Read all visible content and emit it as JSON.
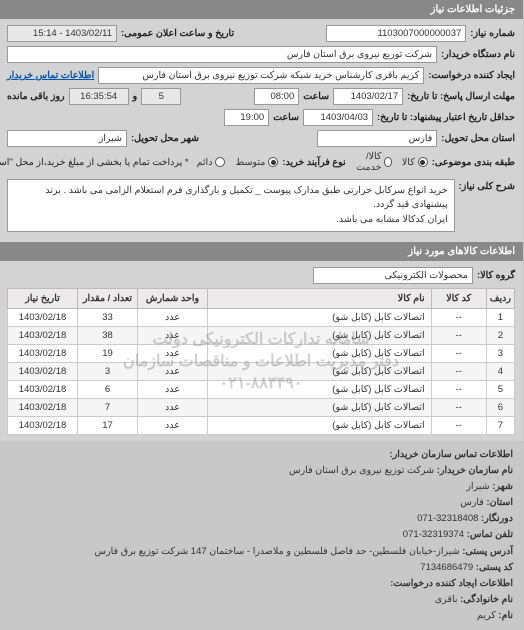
{
  "sections": {
    "details": "جزئیات اطلاعات نیاز",
    "goods": "اطلاعات کالاهای مورد نیاز",
    "buyer_contact": "اطلاعات تماس سازمان خریدار:",
    "requester_contact": "اطلاعات ایجاد کننده درخواست:"
  },
  "labels": {
    "need_no": "شماره نیاز:",
    "public_date": "تاریخ و ساعت اعلان عمومی:",
    "buyer_org": "نام دستگاه خریدار:",
    "requester": "ایجاد کننده درخواست:",
    "buyer_contact_link": "اطلاعات تماس خریدار",
    "send_until_date": "مهلت ارسال پاسخ: تا تاریخ:",
    "time": "ساعت",
    "and": "و",
    "remaining": "روز باقی مانده",
    "valid_until_date": "حداقل تاریخ اعتبار پیشنهاد: تا تاریخ:",
    "location_province": "استان محل تحویل:",
    "location_city": "شهر محل تحویل:",
    "process_type": "نوع فرآیند خرید:",
    "goods_group": "طبقه بندی موضوعی:",
    "payment_note": "* پرداخت تمام یا بخشی از مبلغ خرید،از محل \"اسناد خزانه اسلامی\" خواهد بود.",
    "general_desc": "شرح کلی نیاز:",
    "goods_group_label": "گروه کالا:"
  },
  "values": {
    "need_no": "1103007000000037",
    "public_date": "1403/02/11 - 15:14",
    "buyer_org": "شرکت توزیع نیروی برق استان فارس",
    "requester": "کریم باقری کارشناس خرید شبکه شرکت توزیع نیروی برق استان فارس",
    "send_until_date": "1403/02/17",
    "send_until_time": "08:00",
    "remaining_days": "5",
    "remaining_time": "16:35:54",
    "valid_until_date": "1403/04/03",
    "valid_until_time": "19:00",
    "province": "فارس",
    "city": "شیراز",
    "goods_group": "محصولات الکترونیکی"
  },
  "process_options": {
    "medium": "متوسط",
    "goods2": "کالا",
    "direct": "خرید مستقیم"
  },
  "radio2": {
    "opt1": "دائم",
    "opt2": "کالا/خدمت"
  },
  "desc": {
    "line1": "خرید انواع سرکابل حرارتی طبق مدارک پیوست _ تکمیل و بارگذاری فرم استعلام الزامی می باشد . برند پیشنهادی قید گردد.",
    "line2": "ایران کدکالا مشابه می باشد."
  },
  "watermark": {
    "l1": "سامانه تدارکات الکترونیکی دولت",
    "l2": "دفتر مدیریت اطلاعات و مناقصات سازمان",
    "l3": "۰۲۱-۸۸۳۴۹۰"
  },
  "table": {
    "headers": {
      "idx": "ردیف",
      "code": "کد کالا",
      "name": "نام کالا",
      "unit": "واحد شمارش",
      "qty": "تعداد / مقدار",
      "date": "تاریخ نیاز"
    },
    "rows": [
      {
        "idx": "1",
        "code": "--",
        "name": "اتصالات کابل (کابل شو)",
        "unit": "عدد",
        "qty": "33",
        "date": "1403/02/18"
      },
      {
        "idx": "2",
        "code": "--",
        "name": "اتصالات کابل (کابل شو)",
        "unit": "عدد",
        "qty": "38",
        "date": "1403/02/18"
      },
      {
        "idx": "3",
        "code": "--",
        "name": "اتصالات کابل (کابل شو)",
        "unit": "عدد",
        "qty": "19",
        "date": "1403/02/18"
      },
      {
        "idx": "4",
        "code": "--",
        "name": "اتصالات کابل (کابل شو)",
        "unit": "عدد",
        "qty": "3",
        "date": "1403/02/18"
      },
      {
        "idx": "5",
        "code": "--",
        "name": "اتصالات کابل (کابل شو)",
        "unit": "عدد",
        "qty": "6",
        "date": "1403/02/18"
      },
      {
        "idx": "6",
        "code": "--",
        "name": "اتصالات کابل (کابل شو)",
        "unit": "عدد",
        "qty": "7",
        "date": "1403/02/18"
      },
      {
        "idx": "7",
        "code": "--",
        "name": "اتصالات کابل (کابل شو)",
        "unit": "عدد",
        "qty": "17",
        "date": "1403/02/18"
      }
    ]
  },
  "contact": {
    "org_label": "نام سازمان خریدار:",
    "org": "شرکت توزیع نیروی برق استان فارس",
    "city_label": "شهر:",
    "city": "شیراز",
    "province_label": "استان:",
    "province": "فارس",
    "phone_label": "دورنگار:",
    "phone": "32318408-071",
    "tel_label": "تلفن تماس:",
    "tel": "32319374-071",
    "addr_label": "آدرس پستی:",
    "addr": "شیراز-خیابان فلسطین- حد فاصل فلسطین و ملاصدرا - ساختمان 147 شرکت توزیع برق فارس",
    "post_label": "کد پستی:",
    "post": "7134686479",
    "name_label": "نام خانوادگی:",
    "name": "باقری",
    "fname_label": "نام:",
    "fname": "کریم"
  }
}
